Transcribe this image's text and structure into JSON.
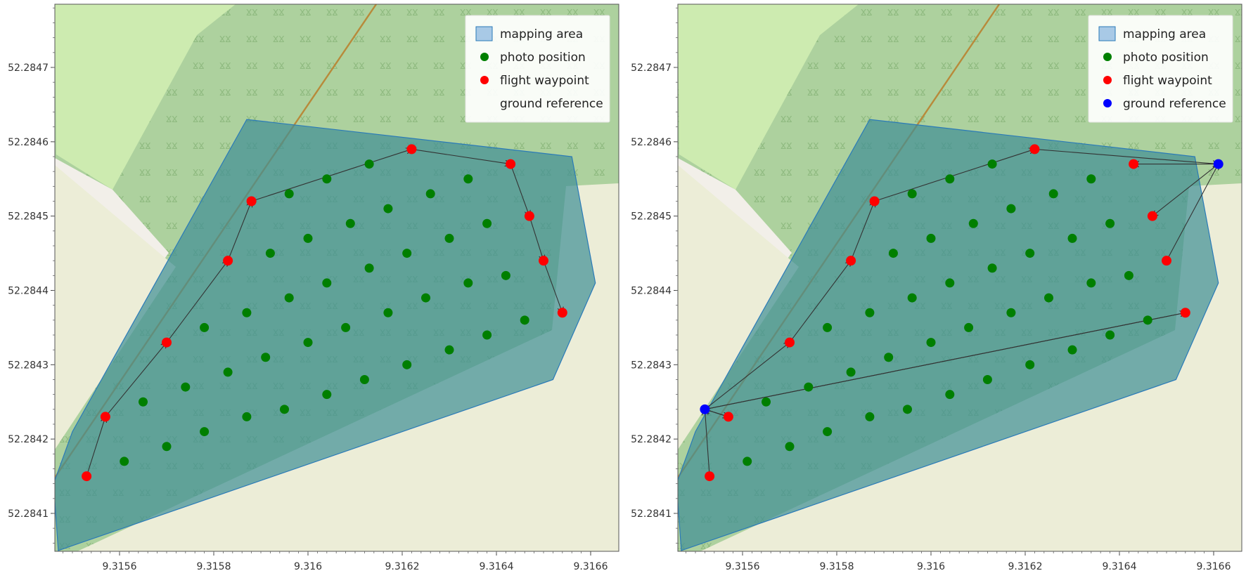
{
  "legend": {
    "mapping_area": "mapping area",
    "photo_position": "photo position",
    "flight_waypoint": "flight waypoint",
    "ground_reference": "ground reference"
  },
  "colors": {
    "land": "#ecedd7",
    "light_green": "#cdebb0",
    "forest": "#add19e",
    "road": "#f2efe9",
    "track": "#b88a3a",
    "area_fill": "#3f8f96",
    "area_stroke": "#2a7ab8",
    "photo": "#007f00",
    "waypoint": "#ff0000",
    "ground": "#0000ff"
  },
  "axes": {
    "x_ticks": [
      "9.3156",
      "9.3158",
      "9.316",
      "9.3162",
      "9.3164",
      "9.3166"
    ],
    "y_ticks": [
      "52.2847",
      "52.2846",
      "52.2845",
      "52.2844",
      "52.2843",
      "52.2842",
      "52.2841"
    ]
  },
  "map_data": {
    "x_tick_values": [
      9.3156,
      9.3158,
      9.316,
      9.3162,
      9.3164,
      9.3166
    ],
    "y_tick_values": [
      52.2847,
      52.2846,
      52.2845,
      52.2844,
      52.2843,
      52.2842,
      52.2841
    ],
    "xlim": [
      9.31546,
      9.3166
    ],
    "ylim": [
      52.28405,
      52.28477
    ],
    "mapping_area": [
      [
        52.28414,
        9.31546
      ],
      [
        52.28405,
        9.31547
      ],
      [
        52.28428,
        9.31652
      ],
      [
        52.28441,
        9.31661
      ],
      [
        52.28458,
        9.31656
      ],
      [
        52.28463,
        9.31587
      ],
      [
        52.28421,
        9.3155
      ]
    ],
    "waypoints": [
      [
        52.28415,
        9.31553
      ],
      [
        52.28423,
        9.31557
      ],
      [
        52.28433,
        9.3157
      ],
      [
        52.28444,
        9.31583
      ],
      [
        52.28452,
        9.31588
      ],
      [
        52.28459,
        9.31622
      ],
      [
        52.28457,
        9.31643
      ],
      [
        52.2845,
        9.31647
      ],
      [
        52.28444,
        9.3165
      ],
      [
        52.28437,
        9.31654
      ]
    ],
    "photos": [
      [
        52.28453,
        9.31596
      ],
      [
        52.28455,
        9.31604
      ],
      [
        52.28457,
        9.31613
      ],
      [
        52.28445,
        9.31592
      ],
      [
        52.28447,
        9.316
      ],
      [
        52.28449,
        9.31609
      ],
      [
        52.28451,
        9.31617
      ],
      [
        52.28453,
        9.31626
      ],
      [
        52.28455,
        9.31634
      ],
      [
        52.28435,
        9.31578
      ],
      [
        52.28437,
        9.31587
      ],
      [
        52.28439,
        9.31596
      ],
      [
        52.28441,
        9.31604
      ],
      [
        52.28443,
        9.31613
      ],
      [
        52.28445,
        9.31621
      ],
      [
        52.28447,
        9.3163
      ],
      [
        52.28449,
        9.31638
      ],
      [
        52.28425,
        9.31565
      ],
      [
        52.28427,
        9.31574
      ],
      [
        52.28429,
        9.31583
      ],
      [
        52.28431,
        9.31591
      ],
      [
        52.28433,
        9.316
      ],
      [
        52.28435,
        9.31608
      ],
      [
        52.28437,
        9.31617
      ],
      [
        52.28439,
        9.31625
      ],
      [
        52.28441,
        9.31634
      ],
      [
        52.28442,
        9.31642
      ],
      [
        52.28417,
        9.31561
      ],
      [
        52.28419,
        9.3157
      ],
      [
        52.28421,
        9.31578
      ],
      [
        52.28423,
        9.31587
      ],
      [
        52.28424,
        9.31595
      ],
      [
        52.28426,
        9.31604
      ],
      [
        52.28428,
        9.31612
      ],
      [
        52.2843,
        9.31621
      ],
      [
        52.28432,
        9.3163
      ],
      [
        52.28434,
        9.31638
      ],
      [
        52.28436,
        9.31646
      ]
    ],
    "path_left": [
      0,
      1,
      2,
      3,
      4,
      5,
      6,
      7,
      8,
      9
    ],
    "ground_reference": [
      [
        52.28424,
        9.31552
      ],
      [
        52.28457,
        9.31661
      ]
    ],
    "links_right": [
      [
        0,
        1,
        2,
        3
      ],
      [
        2,
        0
      ],
      [
        0,
        9
      ],
      [
        9,
        0
      ],
      [
        1,
        8
      ],
      [
        1,
        7
      ],
      [
        1,
        6
      ],
      [
        1,
        5
      ],
      [
        4,
        5
      ]
    ]
  }
}
